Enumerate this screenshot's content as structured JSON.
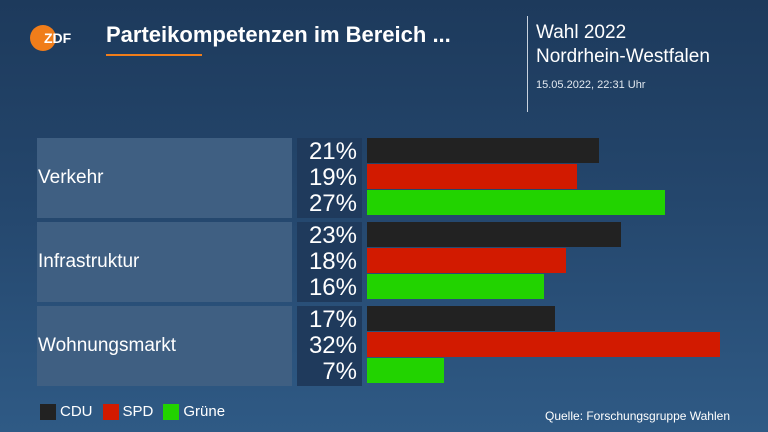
{
  "header": {
    "logo_text": "ZDF",
    "title": "Parteikompetenzen im Bereich ...",
    "election_line1": "Wahl 2022",
    "election_line2": "Nordrhein-Westfalen",
    "timestamp": "15.05.2022, 22:31 Uhr"
  },
  "colors": {
    "CDU": "#222222",
    "SPD": "#d21a00",
    "Grüne": "#22d300",
    "accent": "#f07d1a"
  },
  "chart_data": {
    "type": "bar",
    "orientation": "horizontal",
    "unit": "%",
    "categories": [
      "Verkehr",
      "Infrastruktur",
      "Wohnungsmarkt"
    ],
    "series": [
      {
        "name": "CDU",
        "values": [
          21,
          23,
          17
        ]
      },
      {
        "name": "SPD",
        "values": [
          19,
          18,
          32
        ]
      },
      {
        "name": "Grüne",
        "values": [
          27,
          16,
          7
        ]
      }
    ],
    "xlim": [
      0,
      32
    ],
    "grid": false,
    "legend": "bottom-left"
  },
  "footer": {
    "source": "Quelle: Forschungsgruppe Wahlen"
  }
}
